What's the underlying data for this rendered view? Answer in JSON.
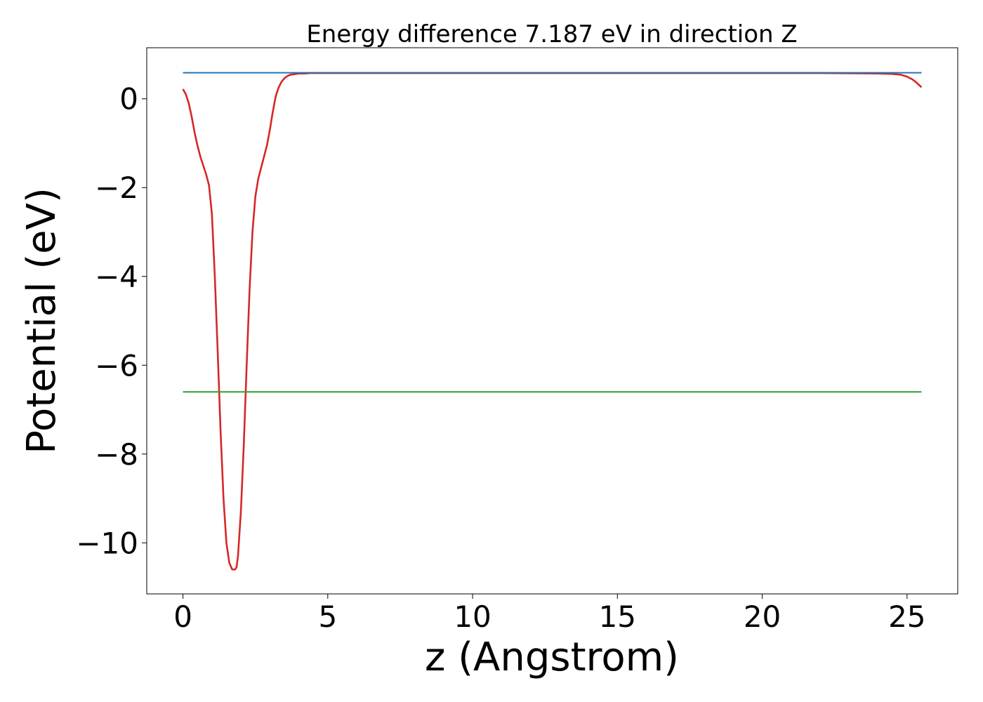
{
  "chart_data": {
    "type": "line",
    "title": "Energy difference 7.187 eV in direction Z",
    "xlabel": "z (Angstrom)",
    "ylabel": "Potential (eV)",
    "xlim": [
      -1.25,
      26.75
    ],
    "ylim": [
      -11.15,
      1.15
    ],
    "xticks": [
      {
        "value": 0,
        "label": "0"
      },
      {
        "value": 5,
        "label": "5"
      },
      {
        "value": 10,
        "label": "10"
      },
      {
        "value": 15,
        "label": "15"
      },
      {
        "value": 20,
        "label": "20"
      },
      {
        "value": 25,
        "label": "25"
      }
    ],
    "yticks": [
      {
        "value": 0,
        "label": "0"
      },
      {
        "value": -2,
        "label": "−2"
      },
      {
        "value": -4,
        "label": "−4"
      },
      {
        "value": -6,
        "label": "−6"
      },
      {
        "value": -8,
        "label": "−8"
      },
      {
        "value": -10,
        "label": "−10"
      }
    ],
    "grid": false,
    "legend": "none",
    "series": [
      {
        "color": "#d62728",
        "kind": "curve",
        "x": [
          0,
          0.1,
          0.2,
          0.3,
          0.4,
          0.5,
          0.6,
          0.7,
          0.8,
          0.9,
          1.0,
          1.1,
          1.2,
          1.3,
          1.4,
          1.5,
          1.6,
          1.7,
          1.8,
          1.85,
          1.9,
          2.0,
          2.1,
          2.2,
          2.3,
          2.4,
          2.5,
          2.6,
          2.7,
          2.8,
          2.9,
          3.0,
          3.1,
          3.2,
          3.3,
          3.4,
          3.5,
          3.6,
          3.7,
          3.8,
          3.9,
          4.0,
          4.2,
          4.4,
          4.6,
          4.8,
          5.0,
          5.5,
          6.0,
          7,
          8,
          10,
          12,
          15,
          18,
          20,
          22,
          24,
          24.5,
          24.8,
          25.0,
          25.2,
          25.3,
          25.4,
          25.5
        ],
        "y": [
          0.22,
          0.1,
          -0.1,
          -0.4,
          -0.75,
          -1.05,
          -1.3,
          -1.5,
          -1.7,
          -1.95,
          -2.6,
          -4.0,
          -5.7,
          -7.5,
          -9.0,
          -10.0,
          -10.45,
          -10.6,
          -10.6,
          -10.55,
          -10.3,
          -9.3,
          -7.8,
          -6.0,
          -4.3,
          -3.0,
          -2.2,
          -1.8,
          -1.55,
          -1.3,
          -1.05,
          -0.7,
          -0.3,
          0.05,
          0.25,
          0.38,
          0.46,
          0.51,
          0.54,
          0.55,
          0.56,
          0.57,
          0.57,
          0.58,
          0.58,
          0.58,
          0.58,
          0.58,
          0.58,
          0.58,
          0.58,
          0.58,
          0.58,
          0.58,
          0.58,
          0.58,
          0.58,
          0.57,
          0.56,
          0.54,
          0.5,
          0.43,
          0.38,
          0.32,
          0.26
        ]
      },
      {
        "color": "#1f77b4",
        "kind": "hline",
        "y": 0.587,
        "x": [
          0,
          25.5
        ]
      },
      {
        "color": "#2ca02c",
        "kind": "hline",
        "y": -6.6,
        "x": [
          0,
          25.5
        ]
      }
    ]
  }
}
